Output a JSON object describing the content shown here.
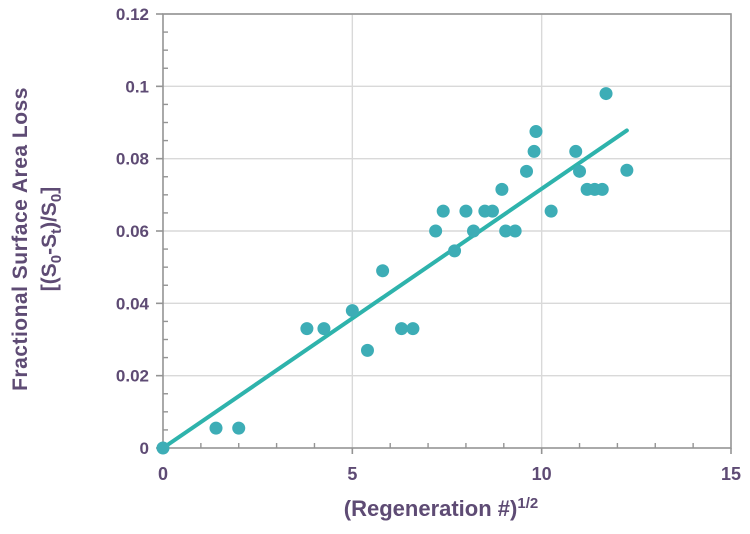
{
  "chart_data": {
    "type": "scatter",
    "title": "",
    "xlabel_parts": [
      {
        "t": "(Regeneration #)"
      },
      {
        "t": "1/2",
        "s": "sup"
      }
    ],
    "ylabel_line1": "Fractional Surface Area Loss",
    "ylabel_line2_parts": [
      {
        "t": "[(S"
      },
      {
        "t": "0",
        "s": "sub"
      },
      {
        "t": "-S"
      },
      {
        "t": "t",
        "s": "sub"
      },
      {
        "t": ")/S"
      },
      {
        "t": "0",
        "s": "sub"
      },
      {
        "t": "]"
      }
    ],
    "xlim": [
      0,
      15
    ],
    "ylim": [
      0,
      0.12
    ],
    "x_major_ticks": [
      {
        "v": 0,
        "label": "0"
      },
      {
        "v": 5,
        "label": "5"
      },
      {
        "v": 10,
        "label": "10"
      },
      {
        "v": 15,
        "label": "15"
      }
    ],
    "y_major_ticks": [
      {
        "v": 0,
        "label": "0"
      },
      {
        "v": 0.02,
        "label": "0.02"
      },
      {
        "v": 0.04,
        "label": "0.04"
      },
      {
        "v": 0.06,
        "label": "0.06"
      },
      {
        "v": 0.08,
        "label": "0.08"
      },
      {
        "v": 0.1,
        "label": "0.1"
      },
      {
        "v": 0.12,
        "label": "0.12"
      }
    ],
    "x_minor_step": 1,
    "y_minor_step": 0.005,
    "grid": true,
    "legend": "none",
    "points": [
      [
        0,
        0
      ],
      [
        1.4,
        0.0055
      ],
      [
        2.0,
        0.0055
      ],
      [
        3.8,
        0.033
      ],
      [
        4.25,
        0.033
      ],
      [
        5.0,
        0.038
      ],
      [
        5.4,
        0.027
      ],
      [
        5.8,
        0.049
      ],
      [
        6.3,
        0.033
      ],
      [
        6.6,
        0.033
      ],
      [
        7.2,
        0.06
      ],
      [
        7.4,
        0.0655
      ],
      [
        7.7,
        0.0545
      ],
      [
        8.0,
        0.0655
      ],
      [
        8.2,
        0.06
      ],
      [
        8.5,
        0.0655
      ],
      [
        8.7,
        0.0655
      ],
      [
        8.95,
        0.0715
      ],
      [
        9.05,
        0.06
      ],
      [
        9.3,
        0.06
      ],
      [
        9.6,
        0.0765
      ],
      [
        9.8,
        0.082
      ],
      [
        9.85,
        0.0875
      ],
      [
        10.25,
        0.0655
      ],
      [
        10.9,
        0.082
      ],
      [
        11.0,
        0.0765
      ],
      [
        11.2,
        0.0715
      ],
      [
        11.4,
        0.0715
      ],
      [
        11.6,
        0.0715
      ],
      [
        11.7,
        0.098
      ],
      [
        12.25,
        0.0768
      ]
    ],
    "trendline": {
      "x": [
        0,
        12.25
      ],
      "y": [
        0,
        0.0878
      ]
    },
    "colors": {
      "marker": "#3DADB6",
      "trend": "#2EB3AC",
      "axis_text": "#5E4B74",
      "grid": "#D9D9D9",
      "axis": "#949494",
      "background": "#FFFFFF"
    }
  }
}
